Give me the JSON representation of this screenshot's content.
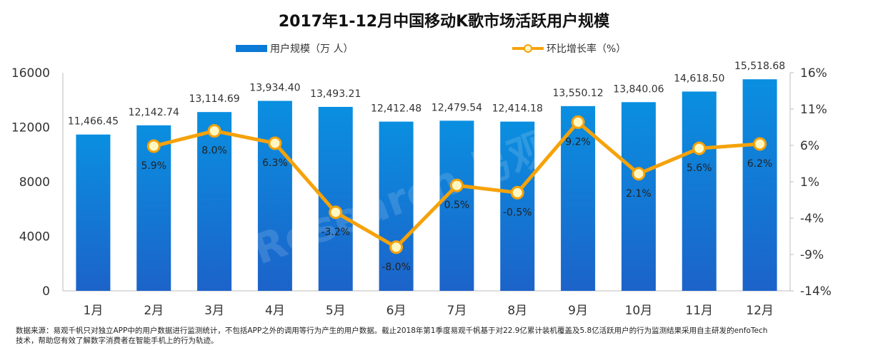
{
  "chart_data": {
    "type": "bar+line",
    "title": "2017年1-12月中国移动K歌市场活跃用户规模",
    "categories": [
      "1月",
      "2月",
      "3月",
      "4月",
      "5月",
      "6月",
      "7月",
      "8月",
      "9月",
      "10月",
      "11月",
      "12月"
    ],
    "series": [
      {
        "name": "用户规模（万 人）",
        "type": "bar",
        "axis": "left",
        "values": [
          11466.45,
          12142.74,
          13114.69,
          13934.4,
          13493.21,
          12412.48,
          12479.54,
          12414.18,
          13550.12,
          13840.06,
          14618.5,
          15518.68
        ],
        "labels": [
          "11,466.45",
          "12,142.74",
          "13,114.69",
          "13,934.40",
          "13,493.21",
          "12,412.48",
          "12,479.54",
          "12,414.18",
          "13,550.12",
          "13,840.06",
          "14,618.50",
          "15,518.68"
        ]
      },
      {
        "name": "环比增长率（%）",
        "type": "line",
        "axis": "right",
        "values": [
          null,
          5.9,
          8.0,
          6.3,
          -3.2,
          -8.0,
          0.5,
          -0.5,
          9.2,
          2.1,
          5.6,
          6.2
        ],
        "labels": [
          "",
          "5.9%",
          "8.0%",
          "6.3%",
          "-3.2%",
          "-8.0%",
          "0.5%",
          "-0.5%",
          "9.2%",
          "2.1%",
          "5.6%",
          "6.2%"
        ]
      }
    ],
    "left_axis": {
      "ylim": [
        0,
        16000
      ],
      "ticks": [
        "0",
        "4000",
        "8000",
        "12000",
        "16000"
      ]
    },
    "right_axis": {
      "ylim": [
        -14,
        16
      ],
      "ticks": [
        "-14%",
        "-9%",
        "-4%",
        "1%",
        "6%",
        "11%",
        "16%"
      ]
    },
    "watermark": "iResearch 易观"
  },
  "footnote": {
    "line1": "数据来源：易观千帆只对独立APP中的用户数据进行监测统计，不包括APP之外的调用等行为产生的用户数据。截止2018年第1季度易观千帆基于对22.9亿累计装机覆盖及5.8亿活跃用户的行为监测结果采用自主研发的enfoTech",
    "line2": "技术，帮助您有效了解数字消费者在智能手机上的行为轨迹。"
  },
  "colors": {
    "bar_top": "#0a8fe0",
    "bar_bottom": "#1c63c9",
    "line": "#f5a20a",
    "marker_fill": "#fff7c2"
  }
}
